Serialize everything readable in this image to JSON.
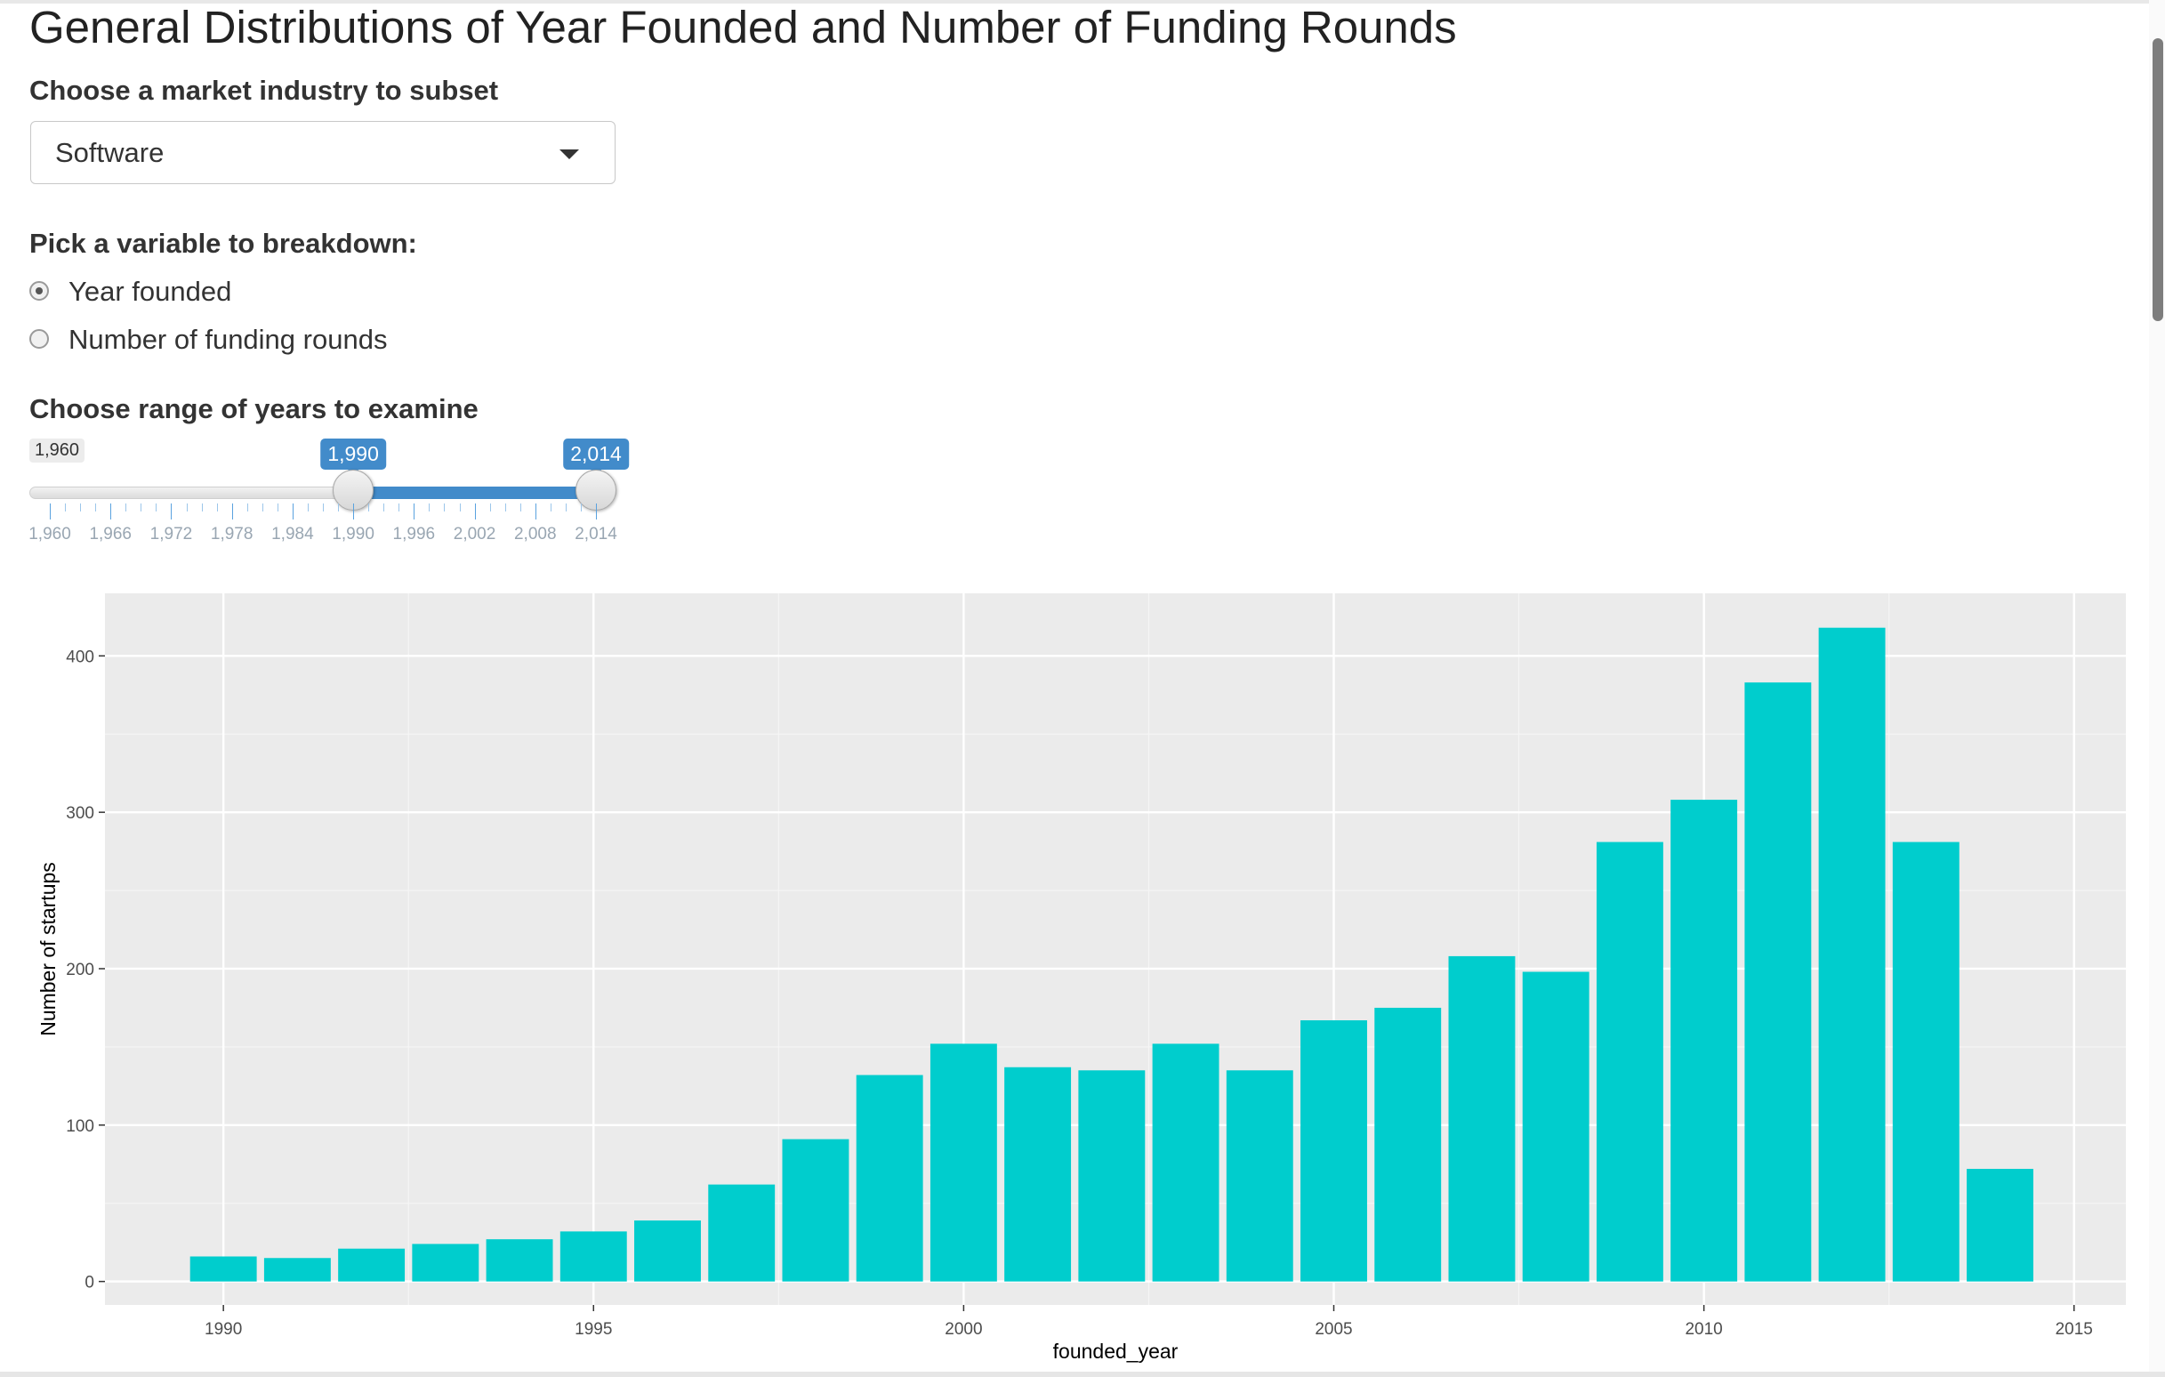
{
  "page": {
    "title": "General Distributions of Year Founded and Number of Funding Rounds"
  },
  "industry": {
    "label": "Choose a market industry to subset",
    "selected": "Software"
  },
  "breakdown": {
    "label": "Pick a variable to breakdown:",
    "options": [
      {
        "label": "Year founded",
        "checked": true
      },
      {
        "label": "Number of funding rounds",
        "checked": false
      }
    ]
  },
  "years": {
    "label": "Choose range of years to examine",
    "min_label": "1,960",
    "from_label": "1,990",
    "to_label": "2,014",
    "min": 1960,
    "max": 2014,
    "from": 1990,
    "to": 2014,
    "tick_labels": [
      "1,960",
      "1,966",
      "1,972",
      "1,978",
      "1,984",
      "1,990",
      "1,996",
      "2,002",
      "2,008",
      "2,014"
    ],
    "accent": "#428bca"
  },
  "chart_data": {
    "type": "bar",
    "xlabel": "founded_year",
    "ylabel": "Number of startups",
    "x": [
      1990,
      1991,
      1992,
      1993,
      1994,
      1995,
      1996,
      1997,
      1998,
      1999,
      2000,
      2001,
      2002,
      2003,
      2004,
      2005,
      2006,
      2007,
      2008,
      2009,
      2010,
      2011,
      2012,
      2013,
      2014
    ],
    "values": [
      16,
      15,
      21,
      24,
      27,
      32,
      39,
      62,
      91,
      132,
      152,
      137,
      135,
      152,
      135,
      167,
      175,
      208,
      198,
      281,
      308,
      383,
      418,
      281,
      72
    ],
    "xlim": [
      1988.4,
      2015.7
    ],
    "ylim": [
      -15,
      440
    ],
    "xticks": [
      1990,
      1995,
      2000,
      2005,
      2010,
      2015
    ],
    "yticks": [
      0,
      100,
      200,
      300,
      400
    ],
    "bar_color": "#00cdcd",
    "panel_color": "#ebebeb",
    "grid": true
  }
}
